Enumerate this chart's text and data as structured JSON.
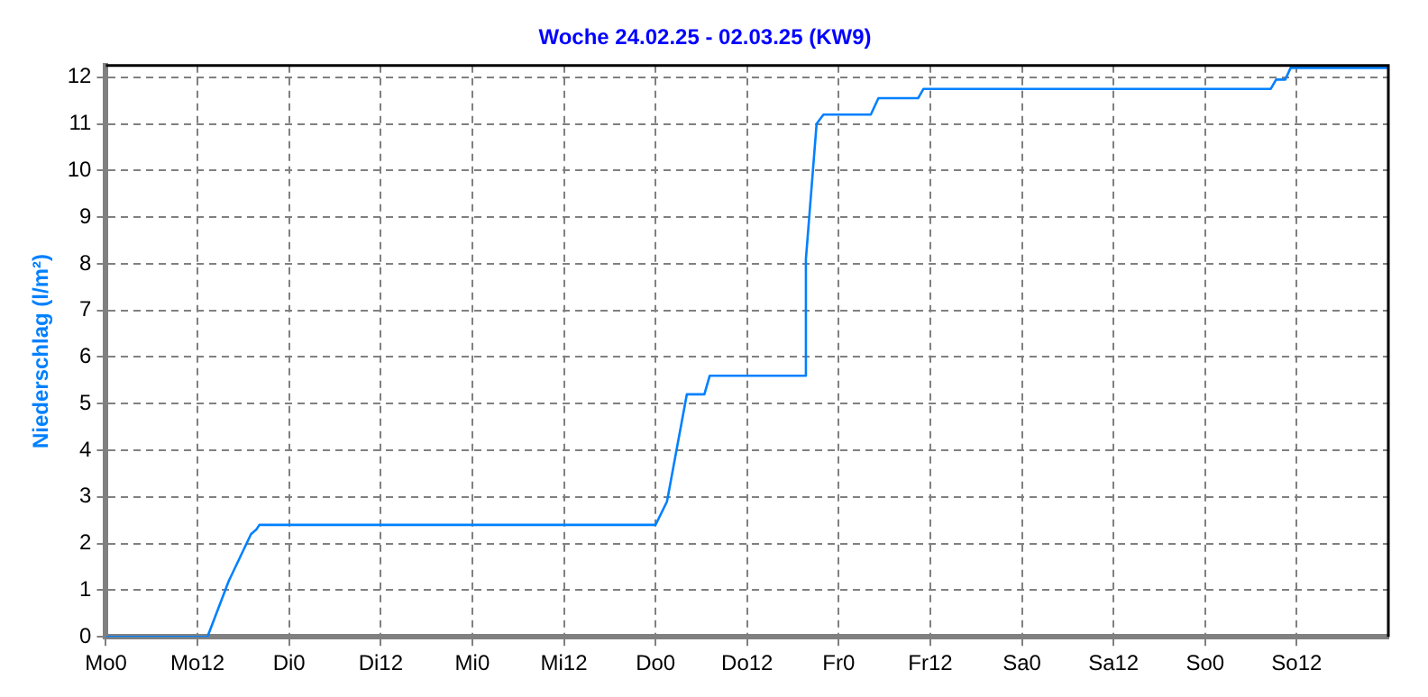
{
  "chart_data": {
    "type": "line",
    "title": "Woche 24.02.25 - 02.03.25 (KW9)",
    "ylabel": "Niederschlag (l/m²)",
    "series": [
      {
        "color": "#0080ff",
        "x": [
          "--02-24T00:00",
          "--02-24T13:18",
          "--02-24T16:06",
          "--02-24T19:00",
          "--02-24T19:42",
          "--02-24T20:06",
          "--02-27T00:00",
          "--02-27T01:30",
          "--02-27T04:06",
          "--02-27T06:24",
          "--02-27T07:06",
          "--02-27T19:30",
          "--02-27T19:42",
          "--02-27T21:06",
          "--02-27T22:00",
          "--02-28T04:12",
          "--02-28T05:12",
          "--02-28T10:24",
          "--02-28T11:06",
          "--03-02T08:36",
          "--03-02T09:18",
          "--03-02T10:30",
          "--03-02T11:12",
          "--03-03T00:00"
        ],
        "values": [
          0,
          0,
          1.2,
          2.2,
          2.3,
          2.4,
          2.4,
          2.9,
          5.2,
          5.2,
          5.6,
          5.6,
          8.1,
          11,
          11.2,
          11.2,
          11.55,
          11.55,
          11.75,
          11.75,
          11.95,
          11.95,
          12.2,
          12.2
        ]
      }
    ],
    "xlim": [
      "--02-24T00:00",
      "--03-03T00:00"
    ],
    "xticks": [
      {
        "value": "--02-24T00:00",
        "label": "Mo0"
      },
      {
        "value": "--02-24T12:00",
        "label": "Mo12"
      },
      {
        "value": "--02-25T00:00",
        "label": "Di0"
      },
      {
        "value": "--02-25T12:00",
        "label": "Di12"
      },
      {
        "value": "--02-26T00:00",
        "label": "Mi0"
      },
      {
        "value": "--02-26T12:00",
        "label": "Mi12"
      },
      {
        "value": "--02-27T00:00",
        "label": "Do0"
      },
      {
        "value": "--02-27T12:00",
        "label": "Do12"
      },
      {
        "value": "--02-28T00:00",
        "label": "Fr0"
      },
      {
        "value": "--02-28T12:00",
        "label": "Fr12"
      },
      {
        "value": "--03-01T00:00",
        "label": "Sa0"
      },
      {
        "value": "--03-01T12:00",
        "label": "Sa12"
      },
      {
        "value": "--03-02T00:00",
        "label": "So0"
      },
      {
        "value": "--03-02T12:00",
        "label": "So12"
      }
    ],
    "ylim": [
      0,
      12.25
    ],
    "yticks": [
      0,
      1,
      2,
      3,
      4,
      5,
      6,
      7,
      8,
      9,
      10,
      11,
      12
    ],
    "grid": true,
    "legend": false,
    "marker": "none",
    "line_style": "solid"
  }
}
